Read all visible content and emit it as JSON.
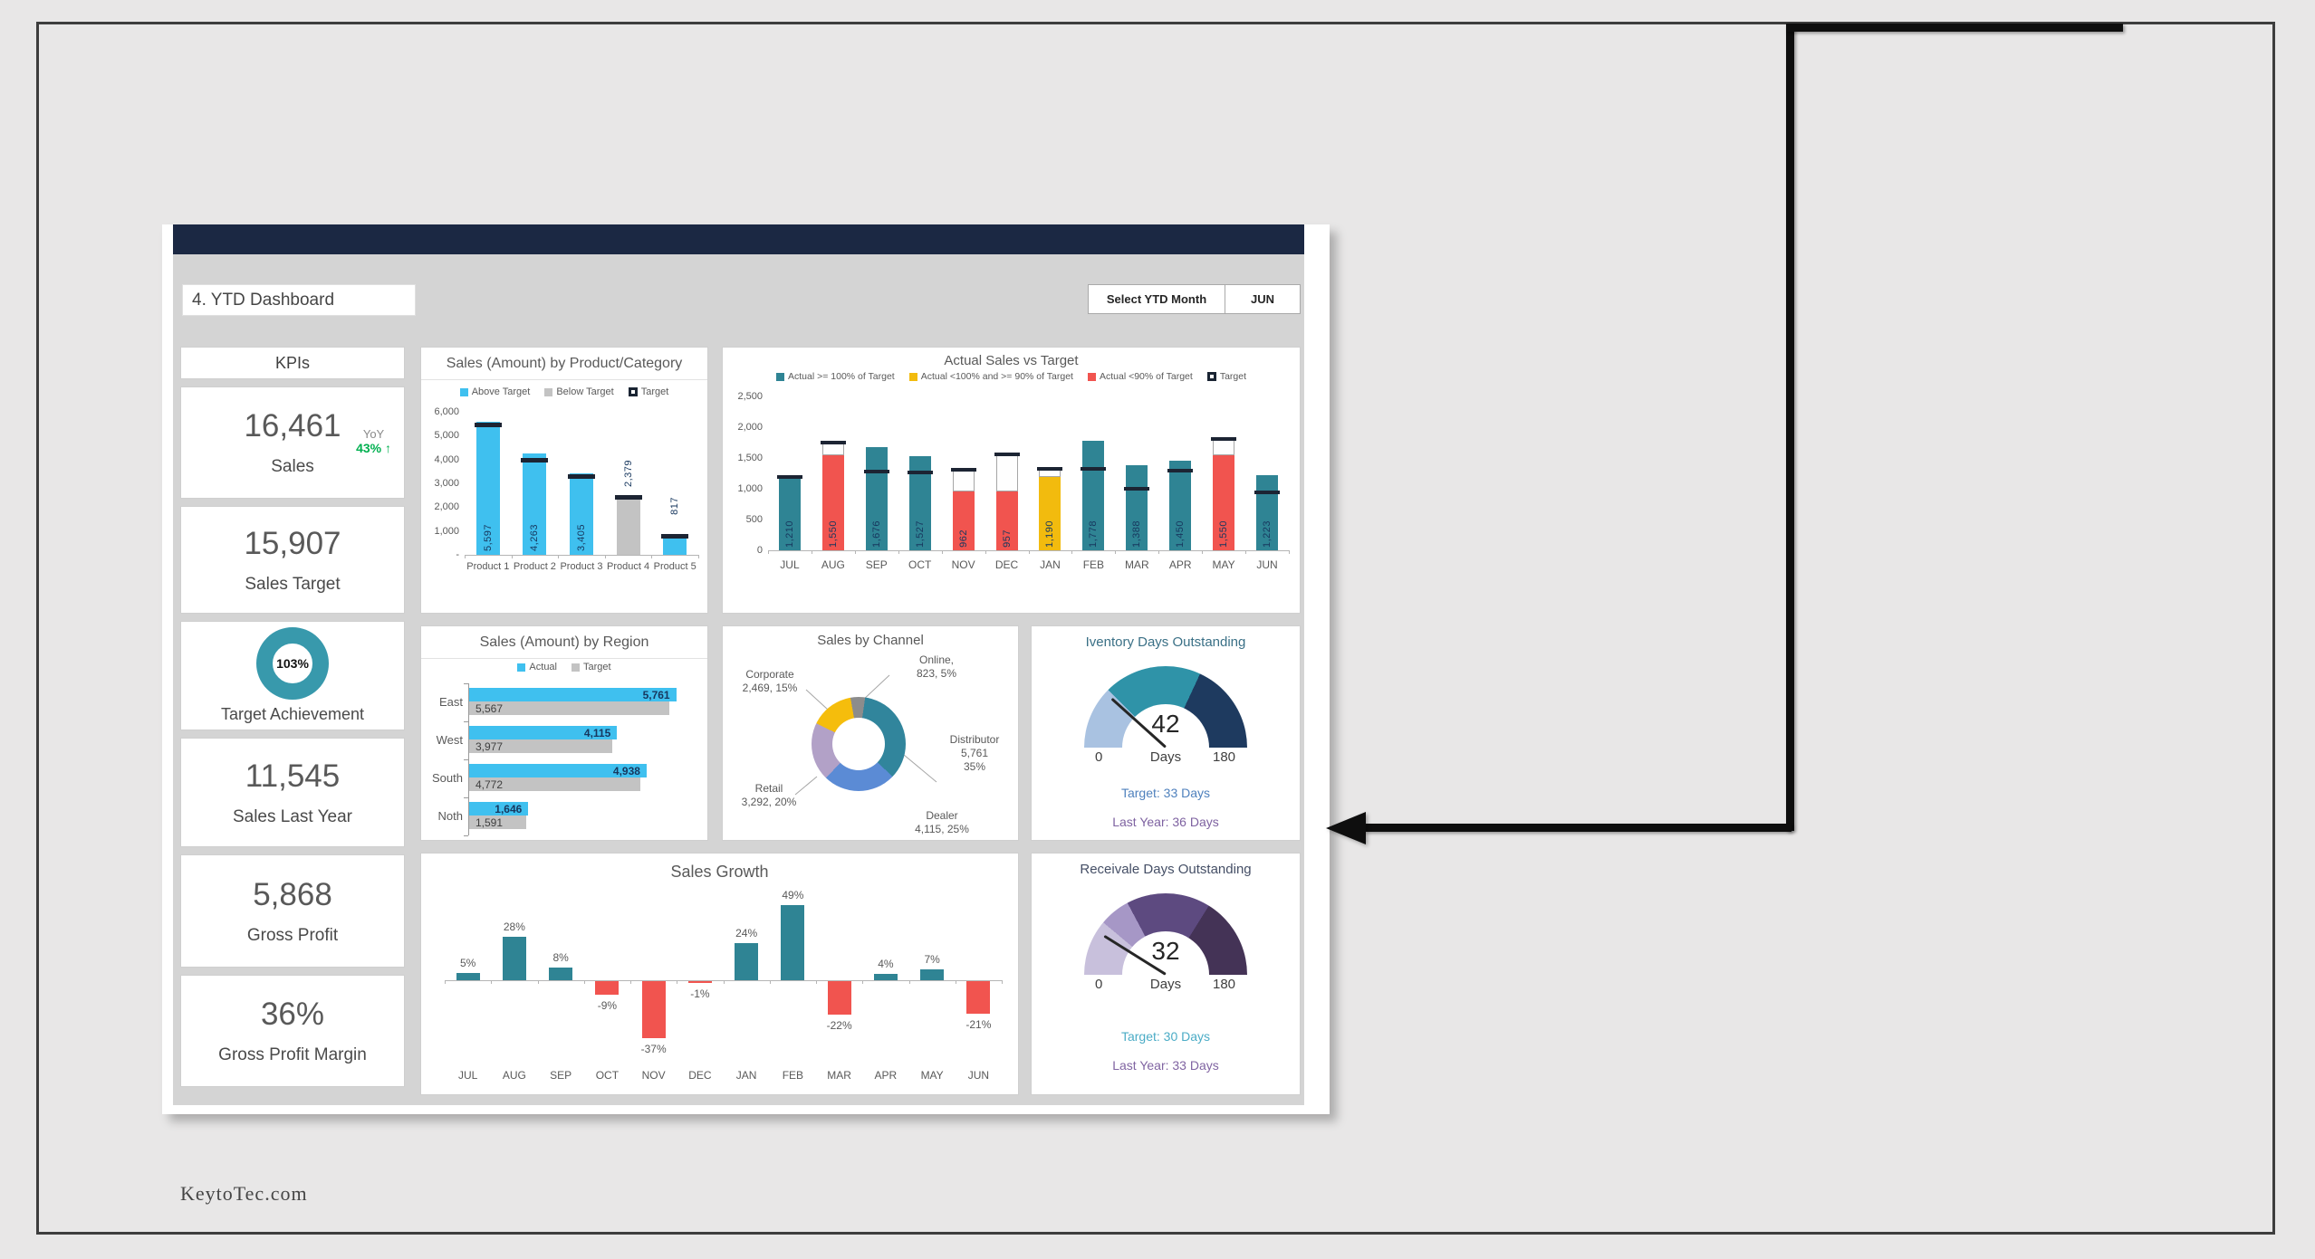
{
  "header": {
    "title": "4. YTD Dashboard",
    "select_button": "Select YTD Month",
    "month": "JUN"
  },
  "kpis": {
    "header": "KPIs",
    "sales": {
      "value": "16,461",
      "label": "Sales",
      "yoy_label": "YoY",
      "yoy_value": "43% ↑"
    },
    "sales_target": {
      "value": "15,907",
      "label": "Sales Target"
    },
    "target_achievement": {
      "value": "103%",
      "label": "Target Achievement"
    },
    "sales_last_year": {
      "value": "11,545",
      "label": "Sales Last Year"
    },
    "gross_profit": {
      "value": "5,868",
      "label": "Gross Profit"
    },
    "gross_profit_margin": {
      "value": "36%",
      "label": "Gross Profit Margin"
    }
  },
  "footer": {
    "watermark": "KeytoTec.com"
  },
  "colors": {
    "navy_bar": "#1b2843",
    "dashboard_bg": "#d4d4d4",
    "cyan": "#3fc0ef",
    "gray_bar": "#c3c3c3",
    "teal": "#2f8494",
    "red": "#f1544f",
    "yellow": "#f2bb0e",
    "target_mark": "#1c2433",
    "green_up": "#00b050",
    "achievement_ring": "#3899ac"
  },
  "chart_data": [
    {
      "id": "sales_by_product",
      "type": "bar",
      "title": "Sales (Amount) by Product/Category",
      "legend": [
        {
          "label": "Above Target",
          "color": "#3fc0ef"
        },
        {
          "label": "Below Target",
          "color": "#c3c3c3"
        },
        {
          "label": "Target",
          "color": "#1a2433",
          "style": "outline"
        }
      ],
      "categories": [
        "Product 1",
        "Product 2",
        "Product 3",
        "Product 4",
        "Product 5"
      ],
      "series": [
        {
          "name": "Actual",
          "values": [
            5597,
            4263,
            3405,
            2379,
            817
          ]
        },
        {
          "name": "Target",
          "values": [
            5450,
            3950,
            3280,
            2420,
            795
          ]
        }
      ],
      "status": [
        "above",
        "above",
        "above",
        "below",
        "above"
      ],
      "value_labels": [
        "5,597",
        "4,263",
        "3,405",
        "2,379",
        "817"
      ],
      "ylim": [
        0,
        6000
      ],
      "yticks": [
        [
          "6,000",
          6000
        ],
        [
          "5,000",
          5000
        ],
        [
          "4,000",
          4000
        ],
        [
          "3,000",
          3000
        ],
        [
          "2,000",
          2000
        ],
        [
          "1,000",
          1000
        ],
        [
          "-",
          0
        ]
      ]
    },
    {
      "id": "actual_vs_target",
      "type": "bar",
      "title": "Actual Sales vs Target",
      "legend": [
        {
          "label": "Actual >= 100% of Target",
          "color": "#2f8494"
        },
        {
          "label": "Actual <100% and >= 90% of Target",
          "color": "#f2bb0e"
        },
        {
          "label": "Actual <90% of Target",
          "color": "#f1544f"
        },
        {
          "label": "Target",
          "color": "#1a2433",
          "style": "outline"
        }
      ],
      "categories": [
        "JUL",
        "AUG",
        "SEP",
        "OCT",
        "NOV",
        "DEC",
        "JAN",
        "FEB",
        "MAR",
        "APR",
        "MAY",
        "JUN"
      ],
      "series": [
        {
          "name": "Actual",
          "values": [
            1210,
            1550,
            1676,
            1527,
            962,
            957,
            1190,
            1778,
            1388,
            1450,
            1550,
            1223
          ]
        },
        {
          "name": "Target",
          "values": [
            1195,
            1750,
            1285,
            1260,
            1310,
            1555,
            1320,
            1330,
            1000,
            1290,
            1810,
            940
          ]
        }
      ],
      "status": [
        "ge100",
        "lt90",
        "ge100",
        "ge100",
        "lt90",
        "lt90",
        "mid",
        "ge100",
        "ge100",
        "ge100",
        "lt90",
        "ge100"
      ],
      "value_labels": [
        "1,210",
        "1,550",
        "1,676",
        "1,527",
        "962",
        "957",
        "1,190",
        "1,778",
        "1,388",
        "1,450",
        "1,550",
        "1,223"
      ],
      "ylim": [
        0,
        2500
      ],
      "yticks": [
        [
          "2,500",
          2500
        ],
        [
          "2,000",
          2000
        ],
        [
          "1,500",
          1500
        ],
        [
          "1,000",
          1000
        ],
        [
          "500",
          500
        ],
        [
          "0",
          0
        ]
      ]
    },
    {
      "id": "sales_by_region",
      "type": "bar",
      "orientation": "horizontal",
      "title": "Sales (Amount) by Region",
      "legend": [
        {
          "label": "Actual",
          "color": "#3fc0ef"
        },
        {
          "label": "Target",
          "color": "#c3c3c3"
        }
      ],
      "categories": [
        "East",
        "West",
        "South",
        "Noth"
      ],
      "series": [
        {
          "name": "Actual",
          "values": [
            5761,
            4115,
            4938,
            1646
          ],
          "labels": [
            "5,761",
            "4,115",
            "4,938",
            "1,646"
          ]
        },
        {
          "name": "Target",
          "values": [
            5567,
            3977,
            4772,
            1591
          ],
          "labels": [
            "5,567",
            "3,977",
            "4,772",
            "1,591"
          ]
        }
      ],
      "xlim": [
        0,
        6300
      ]
    },
    {
      "id": "sales_by_channel",
      "type": "pie",
      "title": "Sales by Channel",
      "slices": [
        {
          "name": "Online",
          "value": 823,
          "pct": 5,
          "color": "#8c8c8c",
          "label_lines": [
            "Online,",
            "823, 5%"
          ]
        },
        {
          "name": "Distributor",
          "value": 5761,
          "pct": 35,
          "color": "#31859c",
          "label_lines": [
            "Distributor",
            "5,761",
            "35%"
          ]
        },
        {
          "name": "Dealer",
          "value": 4115,
          "pct": 25,
          "color": "#5b8bd5",
          "label_lines": [
            "Dealer",
            "4,115, 25%"
          ]
        },
        {
          "name": "Retail",
          "value": 3292,
          "pct": 20,
          "color": "#b2a1c7",
          "label_lines": [
            "Retail",
            "3,292, 20%"
          ]
        },
        {
          "name": "Corporate",
          "value": 2469,
          "pct": 15,
          "color": "#f5bd0c",
          "label_lines": [
            "Corporate",
            "2,469, 15%"
          ]
        }
      ]
    },
    {
      "id": "inventory_days",
      "type": "gauge",
      "title": "Iventory Days Outstanding",
      "value": 42,
      "unit": "Days",
      "min": 0,
      "max": 180,
      "segments": [
        {
          "end": 45,
          "color": "#a9c2e1"
        },
        {
          "end": 115,
          "color": "#2f93a8"
        },
        {
          "end": 180,
          "color": "#1e3a5f"
        }
      ],
      "target_text": "Target: 33 Days",
      "last_year_text": "Last Year: 36 Days"
    },
    {
      "id": "sales_growth",
      "type": "bar",
      "title": "Sales Growth",
      "categories": [
        "JUL",
        "AUG",
        "SEP",
        "OCT",
        "NOV",
        "DEC",
        "JAN",
        "FEB",
        "MAR",
        "APR",
        "MAY",
        "JUN"
      ],
      "values": [
        5,
        28,
        8,
        -9,
        -37,
        -1,
        24,
        49,
        -22,
        4,
        7,
        -21
      ],
      "value_labels": [
        "5%",
        "28%",
        "8%",
        "-9%",
        "-37%",
        "-1%",
        "24%",
        "49%",
        "-22%",
        "4%",
        "7%",
        "-21%"
      ],
      "positive_color": "#2f8494",
      "negative_color": "#f1544f"
    },
    {
      "id": "receivable_days",
      "type": "gauge",
      "title": "Receivale Days Outstanding",
      "value": 32,
      "unit": "Days",
      "min": 0,
      "max": 180,
      "segments": [
        {
          "end": 40,
          "color": "#c8c0dc"
        },
        {
          "end": 62,
          "color": "#a697c6"
        },
        {
          "end": 122,
          "color": "#5d4a80"
        },
        {
          "end": 180,
          "color": "#443356"
        }
      ],
      "target_text": "Target: 30 Days",
      "last_year_text": "Last Year: 33 Days"
    }
  ]
}
